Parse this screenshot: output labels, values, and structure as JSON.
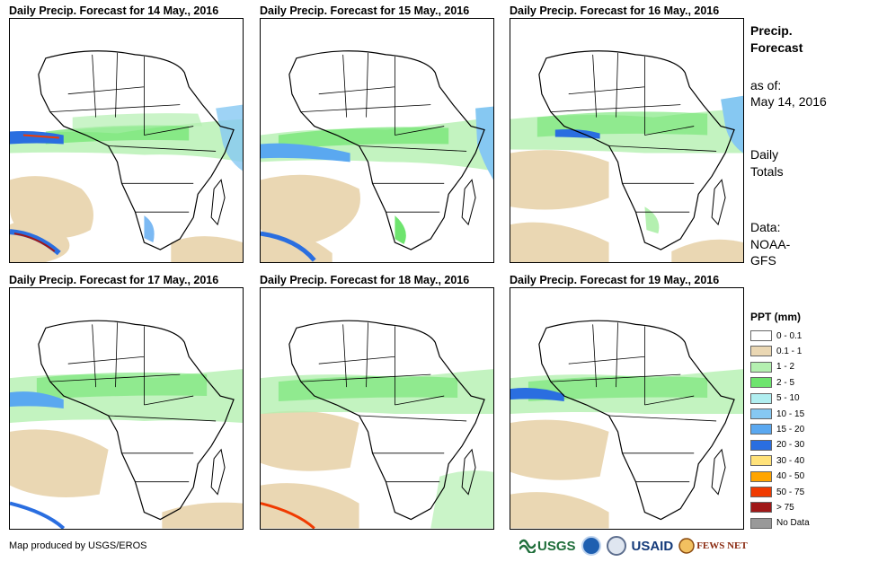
{
  "panels": [
    {
      "title": "Daily Precip. Forecast for 14 May., 2016"
    },
    {
      "title": "Daily Precip. Forecast for 15 May., 2016"
    },
    {
      "title": "Daily Precip. Forecast for 16 May., 2016"
    },
    {
      "title": "Daily Precip. Forecast for 17 May., 2016"
    },
    {
      "title": "Daily Precip. Forecast for 18 May., 2016"
    },
    {
      "title": "Daily Precip. Forecast for 19 May., 2016"
    }
  ],
  "sidebar": {
    "heading_line1": "Precip.",
    "heading_line2": "Forecast",
    "asof_line1": "as of:",
    "asof_line2": "May 14, 2016",
    "totals_line1": "Daily",
    "totals_line2": "Totals",
    "data_line1": "Data:",
    "data_line2": "NOAA-",
    "data_line3": "GFS"
  },
  "legend": {
    "title": "PPT (mm)",
    "items": [
      {
        "label": "0 - 0.1",
        "color": "#ffffff"
      },
      {
        "label": "0.1 - 1",
        "color": "#ead7b3"
      },
      {
        "label": "1 - 2",
        "color": "#b4f0b0"
      },
      {
        "label": "2 - 5",
        "color": "#6ee46e"
      },
      {
        "label": "5 - 10",
        "color": "#b0eef0"
      },
      {
        "label": "10 - 15",
        "color": "#86c8f2"
      },
      {
        "label": "15 - 20",
        "color": "#5aa8f0"
      },
      {
        "label": "20 - 30",
        "color": "#2a6ee0"
      },
      {
        "label": "30 - 40",
        "color": "#ffe27a"
      },
      {
        "label": "40 - 50",
        "color": "#ffa500"
      },
      {
        "label": "50 - 75",
        "color": "#f03a00"
      },
      {
        "label": "> 75",
        "color": "#a01818"
      },
      {
        "label": "No Data",
        "color": "#999999"
      }
    ]
  },
  "footer": {
    "credit": "Map produced by USGS/EROS",
    "logos": {
      "usgs": "USGS",
      "usaid": "USAID",
      "fewsnet": "FEWS NET"
    }
  }
}
